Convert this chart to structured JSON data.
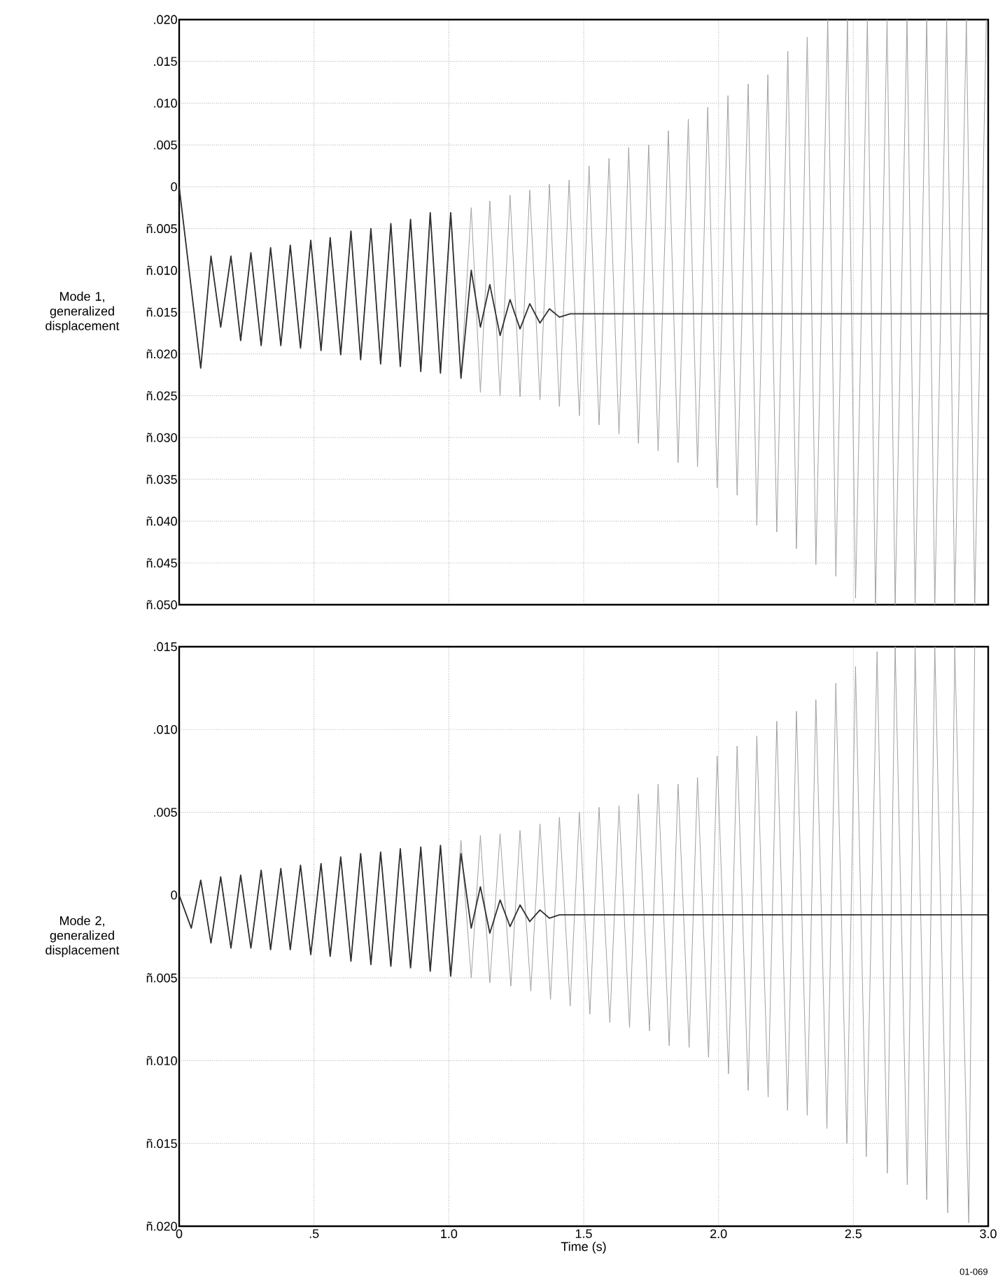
{
  "chart_data": [
    {
      "type": "line",
      "ylabel": "Mode 1, generalized displacement",
      "xlim": [
        0,
        3
      ],
      "ylim": [
        -0.05,
        0.02
      ],
      "xticks": [
        {
          "value": 0.5,
          "label": null
        },
        {
          "value": 1,
          "label": null
        },
        {
          "value": 1.5,
          "label": null
        },
        {
          "value": 2,
          "label": null
        },
        {
          "value": 2.5,
          "label": null
        }
      ],
      "yticks": [
        {
          "value": 0.02,
          "label": ".020"
        },
        {
          "value": 0.015,
          "label": ".015"
        },
        {
          "value": 0.01,
          "label": ".010"
        },
        {
          "value": 0.005,
          "label": ".005"
        },
        0,
        {
          "value": -0.005,
          "label": "ñ.005"
        },
        {
          "value": -0.01,
          "label": "ñ.010"
        },
        {
          "value": -0.015,
          "label": "ñ.015"
        },
        {
          "value": -0.02,
          "label": "ñ.020"
        },
        {
          "value": -0.025,
          "label": "ñ.025"
        },
        {
          "value": -0.03,
          "label": "ñ.030"
        },
        {
          "value": -0.035,
          "label": "ñ.035"
        },
        {
          "value": -0.04,
          "label": "ñ.040"
        },
        {
          "value": -0.045,
          "label": "ñ.045"
        },
        {
          "value": -0.05,
          "label": "ñ.050"
        }
      ],
      "tick_labels": "y",
      "grid": true,
      "marker": "none",
      "line_style": "solid",
      "series": [
        {
          "color": "#a0a0a0",
          "x": [
            0,
            0.08,
            0.118,
            0.154,
            0.192,
            0.228,
            0.266,
            0.304,
            0.339,
            0.377,
            0.412,
            0.45,
            0.488,
            0.526,
            0.56,
            0.599,
            0.637,
            0.673,
            0.711,
            0.747,
            0.785,
            0.82,
            0.858,
            0.896,
            0.931,
            0.969,
            1.007,
            1.045,
            1.083,
            1.117,
            1.152,
            1.19,
            1.227,
            1.264,
            1.3,
            1.338,
            1.373,
            1.41,
            1.446,
            1.484,
            1.52,
            1.557,
            1.594,
            1.631,
            1.667,
            1.703,
            1.741,
            1.776,
            1.814,
            1.85,
            1.888,
            1.922,
            1.96,
            1.995,
            2.035,
            2.069,
            2.11,
            2.142,
            2.183,
            2.216,
            2.257,
            2.289,
            2.329,
            2.361,
            2.405,
            2.435,
            2.478,
            2.508,
            2.552,
            2.582,
            2.625,
            2.655,
            2.699,
            2.729,
            2.772,
            2.802,
            2.846,
            2.876,
            2.919,
            2.95,
            2.993
          ],
          "values": [
            0,
            -0.0217,
            -0.0083,
            -0.0168,
            -0.0083,
            -0.0184,
            -0.0079,
            -0.019,
            -0.0073,
            -0.019,
            -0.007,
            -0.0193,
            -0.0064,
            -0.0196,
            -0.0061,
            -0.0201,
            -0.0053,
            -0.0207,
            -0.005,
            -0.0212,
            -0.0044,
            -0.0215,
            -0.0039,
            -0.0221,
            -0.0031,
            -0.0223,
            -0.0031,
            -0.0229,
            -0.0025,
            -0.0246,
            -0.0017,
            -0.025,
            -0.001,
            -0.0251,
            -0.0004,
            -0.0255,
            0.0003,
            -0.0263,
            0.0008,
            -0.0274,
            0.0025,
            -0.0285,
            0.0034,
            -0.0296,
            0.0047,
            -0.0307,
            0.005,
            -0.0316,
            0.0067,
            -0.033,
            0.0081,
            -0.0335,
            0.0095,
            -0.036,
            0.0109,
            -0.0369,
            0.0123,
            -0.0405,
            0.0134,
            -0.0413,
            0.0162,
            -0.0433,
            0.0179,
            -0.0452,
            0.02,
            -0.0466,
            0.02,
            -0.0492,
            0.02,
            -0.05,
            0.02,
            -0.05,
            0.02,
            -0.05,
            0.02,
            -0.05,
            0.02,
            -0.05,
            0.02,
            -0.05,
            0.02
          ]
        },
        {
          "color": "#303030",
          "x": [
            0,
            0.08,
            0.118,
            0.154,
            0.192,
            0.228,
            0.266,
            0.304,
            0.339,
            0.377,
            0.412,
            0.45,
            0.488,
            0.526,
            0.56,
            0.599,
            0.637,
            0.673,
            0.711,
            0.747,
            0.785,
            0.82,
            0.858,
            0.896,
            0.931,
            0.969,
            1.007,
            1.045,
            1.083,
            1.117,
            1.152,
            1.19,
            1.227,
            1.264,
            1.3,
            1.338,
            1.373,
            1.41,
            1.45,
            3.0
          ],
          "values": [
            0,
            -0.0217,
            -0.0083,
            -0.0168,
            -0.0083,
            -0.0184,
            -0.0079,
            -0.019,
            -0.0073,
            -0.019,
            -0.007,
            -0.0193,
            -0.0064,
            -0.0196,
            -0.0061,
            -0.0201,
            -0.0053,
            -0.0207,
            -0.005,
            -0.0212,
            -0.0044,
            -0.0215,
            -0.0039,
            -0.0221,
            -0.0031,
            -0.0223,
            -0.0031,
            -0.0229,
            -0.01,
            -0.0168,
            -0.0117,
            -0.0178,
            -0.0135,
            -0.017,
            -0.014,
            -0.0163,
            -0.0146,
            -0.0156,
            -0.0152,
            -0.0152
          ]
        }
      ]
    },
    {
      "type": "line",
      "ylabel": "Mode 2, generalized displacement",
      "xlabel": "Time (s)",
      "xlim": [
        0,
        3
      ],
      "ylim": [
        -0.02,
        0.015
      ],
      "xticks": [
        0,
        {
          "value": 0.5,
          "label": ".5"
        },
        {
          "value": 1,
          "label": "1.0"
        },
        {
          "value": 1.5,
          "label": "1.5"
        },
        {
          "value": 2,
          "label": "2.0"
        },
        {
          "value": 2.5,
          "label": "2.5"
        },
        {
          "value": 3,
          "label": "3.0"
        }
      ],
      "yticks": [
        {
          "value": 0.015,
          "label": ".015"
        },
        {
          "value": 0.01,
          "label": ".010"
        },
        {
          "value": 0.005,
          "label": ".005"
        },
        0,
        {
          "value": -0.005,
          "label": "ñ.005"
        },
        {
          "value": -0.01,
          "label": "ñ.010"
        },
        {
          "value": -0.015,
          "label": "ñ.015"
        },
        {
          "value": -0.02,
          "label": "ñ.020"
        }
      ],
      "grid": true,
      "marker": "none",
      "line_style": "solid",
      "annotations": [
        "01-069"
      ],
      "series": [
        {
          "color": "#a0a0a0",
          "x": [
            0,
            0.045,
            0.08,
            0.118,
            0.154,
            0.192,
            0.228,
            0.266,
            0.304,
            0.339,
            0.377,
            0.412,
            0.45,
            0.488,
            0.526,
            0.56,
            0.599,
            0.637,
            0.673,
            0.711,
            0.747,
            0.785,
            0.82,
            0.858,
            0.896,
            0.931,
            0.969,
            1.007,
            1.045,
            1.083,
            1.117,
            1.152,
            1.19,
            1.23,
            1.264,
            1.304,
            1.338,
            1.377,
            1.41,
            1.45,
            1.484,
            1.523,
            1.557,
            1.597,
            1.631,
            1.67,
            1.703,
            1.744,
            1.776,
            1.817,
            1.85,
            1.891,
            1.922,
            1.963,
            1.995,
            2.037,
            2.069,
            2.11,
            2.142,
            2.184,
            2.216,
            2.256,
            2.289,
            2.329,
            2.361,
            2.402,
            2.435,
            2.476,
            2.508,
            2.548,
            2.588,
            2.626,
            2.655,
            2.7,
            2.729,
            2.772,
            2.802,
            2.85,
            2.876,
            2.928,
            2.95
          ],
          "values": [
            0,
            -0.002,
            0.0009,
            -0.0029,
            0.0011,
            -0.0032,
            0.0012,
            -0.0032,
            0.0015,
            -0.0033,
            0.0016,
            -0.0033,
            0.0018,
            -0.0036,
            0.0019,
            -0.0037,
            0.0023,
            -0.004,
            0.0025,
            -0.0042,
            0.0026,
            -0.0043,
            0.0028,
            -0.0044,
            0.0029,
            -0.0046,
            0.003,
            -0.0049,
            0.0033,
            -0.005,
            0.0036,
            -0.0053,
            0.0037,
            -0.0055,
            0.0039,
            -0.0058,
            0.0043,
            -0.0063,
            0.0047,
            -0.0067,
            0.005,
            -0.0072,
            0.0053,
            -0.0077,
            0.0054,
            -0.008,
            0.0061,
            -0.0082,
            0.0067,
            -0.0091,
            0.0067,
            -0.0092,
            0.0071,
            -0.0098,
            0.0084,
            -0.0108,
            0.009,
            -0.0118,
            0.0096,
            -0.0122,
            0.0105,
            -0.013,
            0.0111,
            -0.0133,
            0.0118,
            -0.0141,
            0.0128,
            -0.015,
            0.0138,
            -0.0158,
            0.0147,
            -0.0168,
            0.015,
            -0.0175,
            0.015,
            -0.0184,
            0.015,
            -0.0192,
            0.015,
            -0.0198,
            0.015
          ]
        },
        {
          "color": "#303030",
          "x": [
            0,
            0.045,
            0.08,
            0.118,
            0.154,
            0.192,
            0.228,
            0.266,
            0.304,
            0.339,
            0.377,
            0.412,
            0.45,
            0.488,
            0.526,
            0.56,
            0.599,
            0.637,
            0.673,
            0.711,
            0.747,
            0.785,
            0.82,
            0.858,
            0.896,
            0.931,
            0.969,
            1.007,
            1.045,
            1.083,
            1.117,
            1.152,
            1.19,
            1.227,
            1.264,
            1.3,
            1.338,
            1.373,
            1.41,
            3.0
          ],
          "values": [
            0,
            -0.002,
            0.0009,
            -0.0029,
            0.0011,
            -0.0032,
            0.0012,
            -0.0032,
            0.0015,
            -0.0033,
            0.0016,
            -0.0033,
            0.0018,
            -0.0036,
            0.0019,
            -0.0037,
            0.0023,
            -0.004,
            0.0025,
            -0.0042,
            0.0026,
            -0.0043,
            0.0028,
            -0.0044,
            0.0029,
            -0.0046,
            0.003,
            -0.0049,
            0.0025,
            -0.002,
            0.0005,
            -0.0023,
            -0.0003,
            -0.0019,
            -0.0006,
            -0.0016,
            -0.0009,
            -0.0014,
            -0.0012,
            -0.0012
          ]
        }
      ]
    }
  ]
}
